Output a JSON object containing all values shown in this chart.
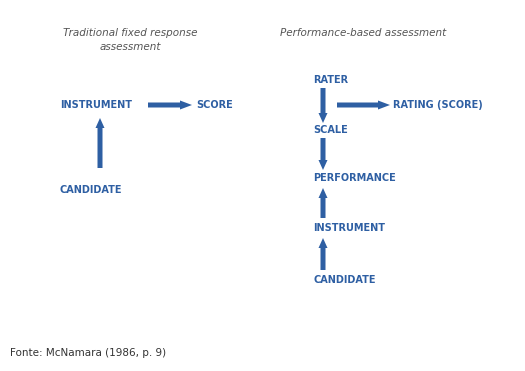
{
  "bg_color": "#ffffff",
  "arrow_color": "#2E5FA3",
  "label_color": "#2E5FA3",
  "title_color": "#555555",
  "source_color": "#333333",
  "left_title_line1": "Traditional fixed response",
  "left_title_line2": "assessment",
  "right_title": "Performance-based assessment",
  "source": "Fonte: McNamara (1986, p. 9)",
  "figsize": [
    5.25,
    3.71
  ],
  "dpi": 100
}
